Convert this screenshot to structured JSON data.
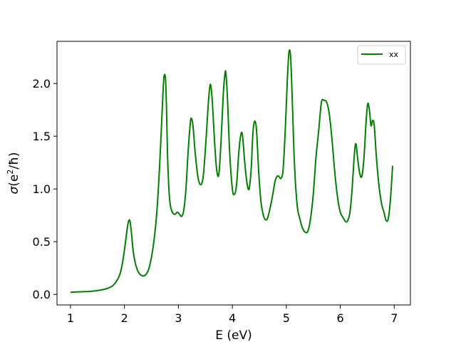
{
  "chart_data": {
    "type": "line",
    "xlabel": "E (eV)",
    "ylabel_symbol": "σ",
    "ylabel_unit_open": "(e",
    "ylabel_unit_exp": "2",
    "ylabel_unit_close": "/ħ)",
    "xlim": [
      0.75,
      7.3
    ],
    "ylim": [
      -0.1,
      2.4
    ],
    "xticks": [
      1,
      2,
      3,
      4,
      5,
      6,
      7
    ],
    "xtick_labels": [
      "1",
      "2",
      "3",
      "4",
      "5",
      "6",
      "7"
    ],
    "yticks": [
      0.0,
      0.5,
      1.0,
      1.5,
      2.0
    ],
    "ytick_labels": [
      "0.0",
      "0.5",
      "1.0",
      "1.5",
      "2.0"
    ],
    "grid": false,
    "legend_position": "top-right",
    "series": [
      {
        "name": "xx",
        "color": "#008000",
        "x": [
          1.0,
          1.2,
          1.4,
          1.6,
          1.7,
          1.8,
          1.9,
          1.95,
          2.0,
          2.04,
          2.07,
          2.1,
          2.13,
          2.16,
          2.2,
          2.25,
          2.3,
          2.35,
          2.4,
          2.45,
          2.5,
          2.55,
          2.6,
          2.65,
          2.7,
          2.73,
          2.76,
          2.78,
          2.8,
          2.83,
          2.86,
          2.9,
          2.94,
          2.98,
          3.02,
          3.06,
          3.1,
          3.14,
          3.18,
          3.22,
          3.24,
          3.27,
          3.31,
          3.36,
          3.41,
          3.46,
          3.51,
          3.55,
          3.58,
          3.6,
          3.63,
          3.67,
          3.71,
          3.75,
          3.79,
          3.83,
          3.86,
          3.88,
          3.91,
          3.95,
          4.0,
          4.04,
          4.08,
          4.12,
          4.16,
          4.19,
          4.23,
          4.27,
          4.31,
          4.35,
          4.38,
          4.41,
          4.44,
          4.46,
          4.49,
          4.53,
          4.57,
          4.61,
          4.65,
          4.7,
          4.75,
          4.79,
          4.83,
          4.86,
          4.9,
          4.94,
          4.98,
          5.02,
          5.05,
          5.08,
          5.11,
          5.15,
          5.2,
          5.25,
          5.3,
          5.35,
          5.4,
          5.45,
          5.5,
          5.55,
          5.6,
          5.65,
          5.7,
          5.75,
          5.8,
          5.85,
          5.9,
          5.95,
          6.0,
          6.05,
          6.1,
          6.14,
          6.18,
          6.22,
          6.26,
          6.29,
          6.32,
          6.36,
          6.4,
          6.44,
          6.48,
          6.51,
          6.54,
          6.57,
          6.6,
          6.63,
          6.67,
          6.72,
          6.77,
          6.81,
          6.85,
          6.89,
          6.93,
          6.97
        ],
        "y": [
          0.02,
          0.025,
          0.03,
          0.045,
          0.06,
          0.09,
          0.17,
          0.26,
          0.42,
          0.58,
          0.68,
          0.7,
          0.58,
          0.42,
          0.3,
          0.22,
          0.185,
          0.175,
          0.19,
          0.24,
          0.35,
          0.52,
          0.78,
          1.2,
          1.75,
          2.05,
          2.05,
          1.75,
          1.3,
          0.95,
          0.82,
          0.77,
          0.76,
          0.78,
          0.76,
          0.74,
          0.8,
          1.0,
          1.35,
          1.62,
          1.67,
          1.6,
          1.35,
          1.12,
          1.04,
          1.12,
          1.45,
          1.78,
          1.96,
          1.98,
          1.82,
          1.45,
          1.18,
          1.14,
          1.45,
          1.88,
          2.08,
          2.1,
          1.85,
          1.35,
          1.0,
          0.95,
          1.05,
          1.35,
          1.52,
          1.5,
          1.25,
          1.06,
          1.0,
          1.2,
          1.52,
          1.64,
          1.6,
          1.45,
          1.15,
          0.88,
          0.76,
          0.71,
          0.72,
          0.82,
          0.95,
          1.07,
          1.12,
          1.12,
          1.1,
          1.18,
          1.55,
          2.05,
          2.3,
          2.25,
          1.85,
          1.25,
          0.85,
          0.72,
          0.63,
          0.59,
          0.6,
          0.72,
          0.95,
          1.3,
          1.55,
          1.82,
          1.84,
          1.82,
          1.7,
          1.45,
          1.15,
          0.92,
          0.78,
          0.73,
          0.69,
          0.7,
          0.78,
          1.0,
          1.32,
          1.43,
          1.3,
          1.15,
          1.12,
          1.3,
          1.65,
          1.81,
          1.75,
          1.6,
          1.65,
          1.6,
          1.3,
          1.02,
          0.85,
          0.78,
          0.7,
          0.72,
          0.9,
          1.22
        ]
      }
    ]
  }
}
